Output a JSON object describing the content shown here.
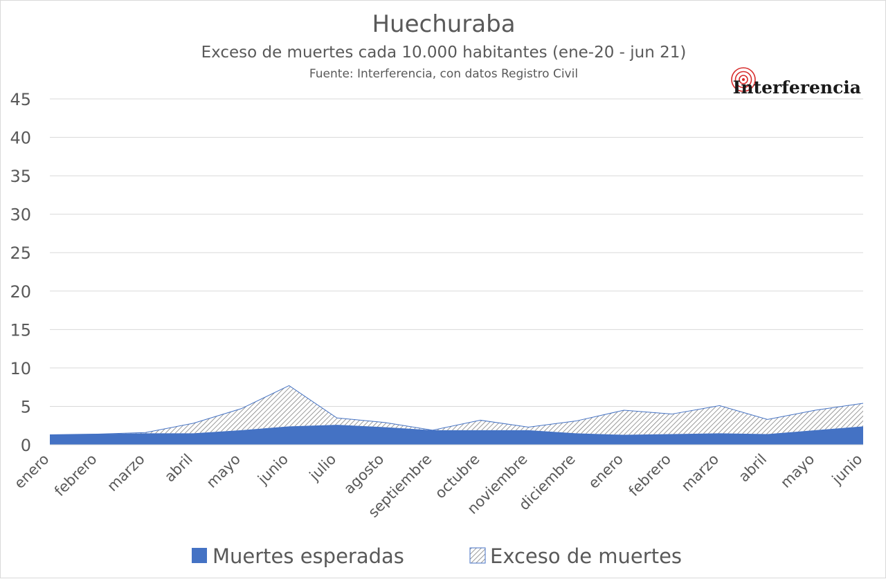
{
  "chart_data": {
    "type": "area",
    "stacked": true,
    "title": "Huechuraba",
    "subtitle": "Exceso de muertes cada 10.000 habitantes (ene-20  - jun 21)",
    "source": "Fuente: Interferencia, con datos Registro Civil",
    "logo_text": "Interferencia",
    "categories": [
      "enero",
      "febrero",
      "marzo",
      "abril",
      "mayo",
      "junio",
      "julio",
      "agosto",
      "septiembre",
      "octubre",
      "noviembre",
      "diciembre",
      "enero",
      "febrero",
      "marzo",
      "abril",
      "mayo",
      "junio"
    ],
    "ylim": [
      0,
      45
    ],
    "yticks": [
      "0",
      "5",
      "10",
      "15",
      "20",
      "25",
      "30",
      "35",
      "40",
      "45"
    ],
    "grid": true,
    "legend_position": "bottom",
    "series": [
      {
        "name": "Muertes esperadas",
        "values": [
          1.3,
          1.4,
          1.5,
          1.5,
          1.9,
          2.4,
          2.6,
          2.3,
          1.9,
          1.9,
          1.9,
          1.5,
          1.3,
          1.4,
          1.5,
          1.4,
          1.9,
          2.4
        ],
        "color": "#4472c4"
      },
      {
        "name": "Exceso de muertes",
        "values": [
          0.0,
          0.0,
          0.1,
          1.3,
          2.8,
          5.3,
          0.9,
          0.6,
          0.0,
          1.3,
          0.4,
          1.6,
          3.2,
          2.6,
          3.6,
          1.9,
          2.6,
          3.0
        ],
        "pattern": "hatch"
      }
    ]
  }
}
